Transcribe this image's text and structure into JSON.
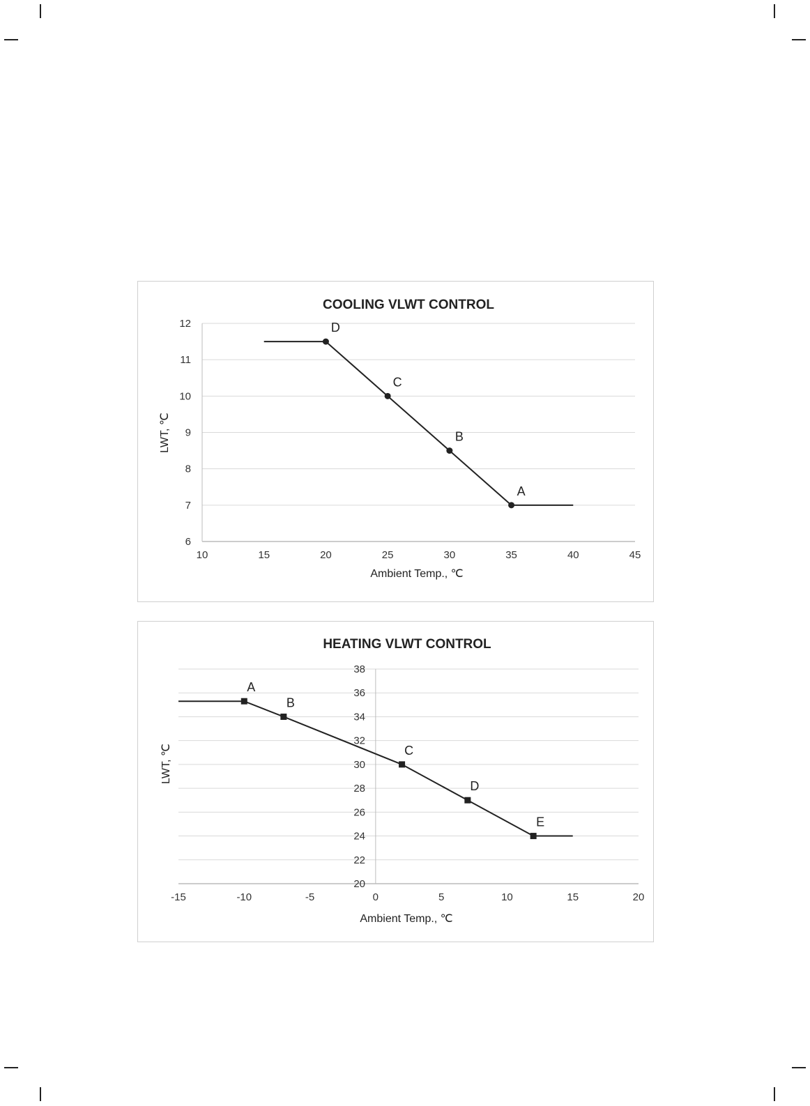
{
  "chart_data": [
    {
      "type": "line",
      "title": "COOLING VLWT CONTROL",
      "xlabel": "Ambient Temp., ℃",
      "ylabel": "LWT, ℃",
      "xlim": [
        10,
        45
      ],
      "ylim": [
        6,
        12
      ],
      "x_ticks": [
        "10",
        "15",
        "20",
        "25",
        "30",
        "35",
        "40",
        "45"
      ],
      "y_ticks": [
        "6",
        "7",
        "8",
        "9",
        "10",
        "11",
        "12"
      ],
      "grid": "horizontal",
      "line": [
        [
          15,
          11.5
        ],
        [
          20,
          11.5
        ],
        [
          25,
          10
        ],
        [
          30,
          8.5
        ],
        [
          35,
          7
        ],
        [
          40,
          7
        ]
      ],
      "points": [
        {
          "label": "D",
          "x": 20,
          "y": 11.5
        },
        {
          "label": "C",
          "x": 25,
          "y": 10
        },
        {
          "label": "B",
          "x": 30,
          "y": 8.5
        },
        {
          "label": "A",
          "x": 35,
          "y": 7
        }
      ],
      "marker": "circle",
      "color": "#222222"
    },
    {
      "type": "line",
      "title": "HEATING VLWT CONTROL",
      "xlabel": "Ambient Temp., ℃",
      "ylabel": "LWT, ℃",
      "xlim": [
        -15,
        20
      ],
      "ylim": [
        20,
        38
      ],
      "x_ticks": [
        "-15",
        "-10",
        "-5",
        "0",
        "5",
        "10",
        "15",
        "20"
      ],
      "y_ticks": [
        "20",
        "22",
        "24",
        "26",
        "28",
        "30",
        "32",
        "34",
        "36",
        "38"
      ],
      "grid": "horizontal",
      "line": [
        [
          -15,
          35.3
        ],
        [
          -10,
          35.3
        ],
        [
          -7,
          34
        ],
        [
          2,
          30
        ],
        [
          7,
          27
        ],
        [
          12,
          24
        ],
        [
          15,
          24
        ]
      ],
      "points": [
        {
          "label": "A",
          "x": -10,
          "y": 35.3
        },
        {
          "label": "B",
          "x": -7,
          "y": 34
        },
        {
          "label": "C",
          "x": 2,
          "y": 30
        },
        {
          "label": "D",
          "x": 7,
          "y": 27
        },
        {
          "label": "E",
          "x": 12,
          "y": 24
        }
      ],
      "marker": "square",
      "color": "#222222"
    }
  ]
}
